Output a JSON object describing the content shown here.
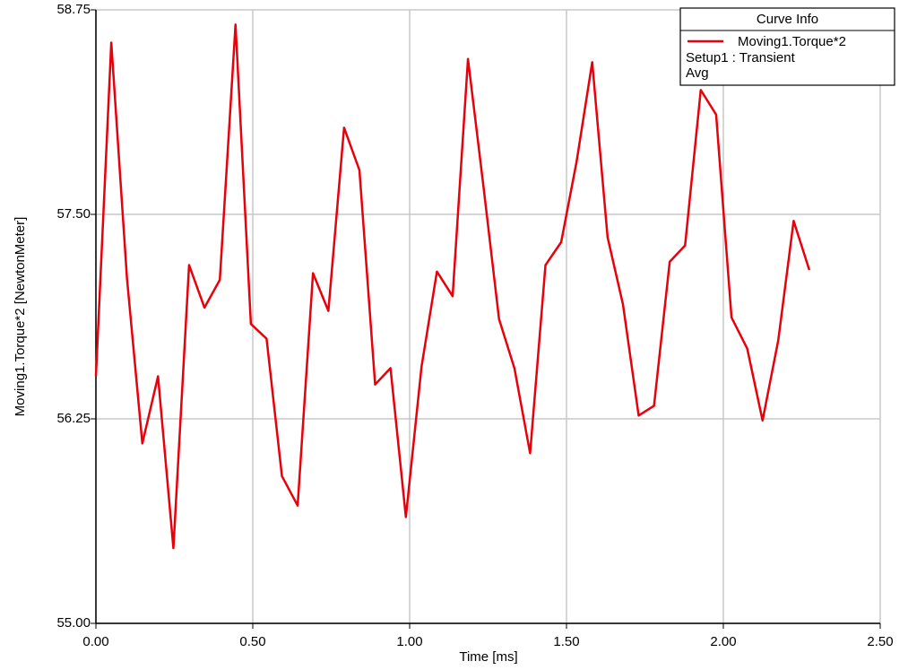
{
  "chart_data": {
    "type": "line",
    "x_label": "Time [ms]",
    "y_label": "Moving1.Torque*2 [NewtonMeter]",
    "legend_title": "Curve Info",
    "legend_notes": [
      "Setup1 : Transient",
      "Avg"
    ],
    "legend_position": "top-right",
    "grid": true,
    "xlim": [
      0,
      2.5
    ],
    "xticks": [
      {
        "value": 0,
        "label": "0.00"
      },
      {
        "value": 0.5,
        "label": "0.50"
      },
      {
        "value": 1,
        "label": "1.00"
      },
      {
        "value": 1.5,
        "label": "1.50"
      },
      {
        "value": 2,
        "label": "2.00"
      },
      {
        "value": 2.5,
        "label": "2.50"
      }
    ],
    "ylim": [
      55,
      58.75
    ],
    "yticks": [
      {
        "value": 55,
        "label": "55.00"
      },
      56.25,
      {
        "value": 57.5,
        "label": "57.50"
      },
      58.75
    ],
    "x": [
      0,
      0.049,
      0.099,
      0.148,
      0.198,
      0.247,
      0.297,
      0.346,
      0.395,
      0.445,
      0.494,
      0.544,
      0.593,
      0.643,
      0.692,
      0.741,
      0.791,
      0.84,
      0.89,
      0.939,
      0.988,
      1.038,
      1.087,
      1.137,
      1.186,
      1.236,
      1.285,
      1.334,
      1.384,
      1.433,
      1.483,
      1.532,
      1.582,
      1.631,
      1.68,
      1.73,
      1.779,
      1.829,
      1.878,
      1.928,
      1.977,
      2.026,
      2.076,
      2.125,
      2.175,
      2.224,
      2.274
    ],
    "series": [
      {
        "name": "Moving1.Torque*2",
        "color": "#e8000b",
        "values": [
          56.51,
          58.55,
          57.11,
          56.1,
          56.51,
          55.46,
          57.19,
          56.93,
          57.1,
          58.66,
          56.83,
          56.74,
          55.9,
          55.72,
          57.14,
          56.91,
          58.03,
          57.77,
          56.46,
          56.56,
          55.65,
          56.57,
          57.15,
          57.0,
          58.45,
          57.66,
          56.86,
          56.56,
          56.04,
          57.19,
          57.33,
          57.82,
          58.43,
          57.36,
          56.95,
          56.27,
          56.33,
          57.21,
          57.31,
          58.26,
          58.11,
          56.87,
          56.68,
          56.24,
          56.73,
          57.46,
          57.16
        ]
      }
    ]
  }
}
